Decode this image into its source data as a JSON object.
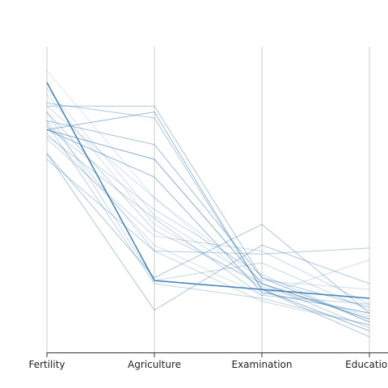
{
  "chart_data": {
    "type": "parallel-coordinates",
    "dimensions": [
      "Fertility",
      "Agriculture",
      "Examination",
      "Education"
    ],
    "value_scale": "each axis normalized 0 (bottom) to 1 (top)",
    "colors": {
      "line": "#4682b4",
      "axis": "#cccccc",
      "baseline": "#333333",
      "text": "#222222"
    },
    "series": [
      {
        "values": [
          0.88,
          0.21,
          0.18,
          0.15
        ],
        "opacity": 0.95,
        "width": 1.6
      },
      {
        "values": [
          0.72,
          0.78,
          0.18,
          0.04
        ],
        "opacity": 0.55,
        "width": 1.0
      },
      {
        "values": [
          0.72,
          0.62,
          0.2,
          0.08
        ],
        "opacity": 0.65,
        "width": 1.0
      },
      {
        "values": [
          0.72,
          0.56,
          0.17,
          0.1
        ],
        "opacity": 0.55,
        "width": 1.0
      },
      {
        "values": [
          0.8,
          0.8,
          0.22,
          0.12
        ],
        "opacity": 0.45,
        "width": 1.0
      },
      {
        "values": [
          0.75,
          0.67,
          0.22,
          0.07
        ],
        "opacity": 0.5,
        "width": 1.0
      },
      {
        "values": [
          0.81,
          0.76,
          0.18,
          0.02
        ],
        "opacity": 0.45,
        "width": 1.0
      },
      {
        "values": [
          0.62,
          0.31,
          0.3,
          0.32
        ],
        "opacity": 0.4,
        "width": 1.0
      },
      {
        "values": [
          0.64,
          0.11,
          0.33,
          0.2
        ],
        "opacity": 0.45,
        "width": 1.0
      },
      {
        "values": [
          0.64,
          0.22,
          0.4,
          0.1
        ],
        "opacity": 0.45,
        "width": 1.0
      },
      {
        "values": [
          0.7,
          0.42,
          0.16,
          0.13
        ],
        "opacity": 0.35,
        "width": 1.0
      },
      {
        "values": [
          0.78,
          0.38,
          0.2,
          0.05
        ],
        "opacity": 0.35,
        "width": 1.0
      },
      {
        "values": [
          0.73,
          0.45,
          0.23,
          0.07
        ],
        "opacity": 0.3,
        "width": 1.0
      },
      {
        "values": [
          0.84,
          0.4,
          0.19,
          0.09
        ],
        "opacity": 0.25,
        "width": 1.0
      },
      {
        "values": [
          0.69,
          0.36,
          0.31,
          0.13
        ],
        "opacity": 0.3,
        "width": 1.0
      },
      {
        "values": [
          0.75,
          0.31,
          0.14,
          0.06
        ],
        "opacity": 0.3,
        "width": 1.0
      },
      {
        "values": [
          0.8,
          0.49,
          0.21,
          0.18
        ],
        "opacity": 0.25,
        "width": 1.0
      },
      {
        "values": [
          0.92,
          0.49,
          0.18,
          0.1
        ],
        "opacity": 0.2,
        "width": 1.0
      },
      {
        "values": [
          0.74,
          0.2,
          0.15,
          0.06
        ],
        "opacity": 0.35,
        "width": 1.0
      },
      {
        "values": [
          0.86,
          0.43,
          0.2,
          0.08
        ],
        "opacity": 0.25,
        "width": 1.0
      },
      {
        "values": [
          0.78,
          0.21,
          0.27,
          0.11
        ],
        "opacity": 0.3,
        "width": 1.0
      },
      {
        "values": [
          0.71,
          0.33,
          0.16,
          0.28
        ],
        "opacity": 0.25,
        "width": 1.0
      }
    ],
    "title": "",
    "grid": false
  }
}
